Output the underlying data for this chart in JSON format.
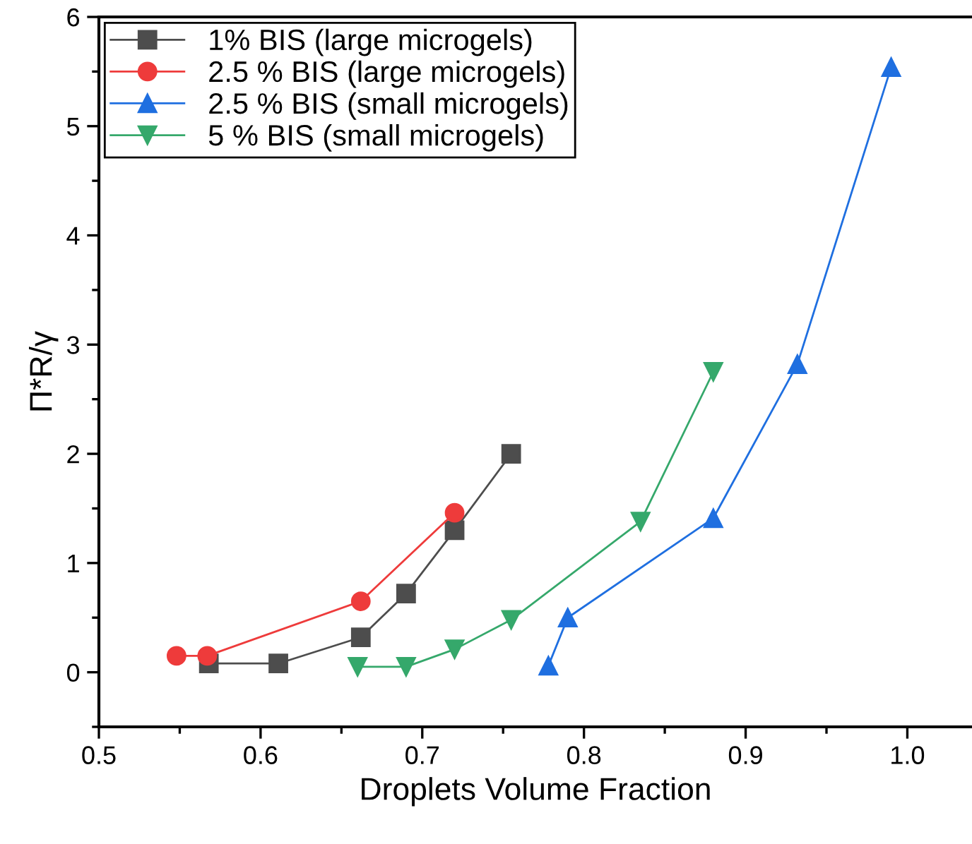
{
  "chart_data": {
    "type": "line",
    "xlabel": "Droplets Volume Fraction",
    "ylabel": "Π*R/γ",
    "xlim": [
      0.5,
      1.04
    ],
    "xticks": [
      0.5,
      0.6,
      0.7,
      0.8,
      0.9,
      {
        "value": 1.0,
        "label": "1.0"
      }
    ],
    "ylim": [
      -0.5,
      6
    ],
    "yticks": [
      0,
      1,
      2,
      3,
      4,
      5,
      6
    ],
    "grid": false,
    "legend": "top left",
    "line_style": "solid",
    "series": [
      {
        "name": "1% BIS (large microgels)",
        "color": "#4d4d4d",
        "marker": "square",
        "x": [
          0.568,
          0.611,
          0.662,
          0.69,
          0.72,
          0.755
        ],
        "values": [
          0.08,
          0.08,
          0.32,
          0.72,
          1.3,
          2.0
        ]
      },
      {
        "name": "2.5 % BIS (large microgels)",
        "color": "#ee3b3b",
        "marker": "circle",
        "x": [
          0.548,
          0.567,
          0.662,
          0.72
        ],
        "values": [
          0.15,
          0.15,
          0.65,
          1.46
        ]
      },
      {
        "name": "2.5 % BIS (small microgels)",
        "color": "#1f6fe0",
        "marker": "triangle",
        "x": [
          0.778,
          0.79,
          0.88,
          0.932,
          0.99
        ],
        "values": [
          0.06,
          0.5,
          1.41,
          2.82,
          5.54
        ]
      },
      {
        "name": "5 % BIS (small microgels)",
        "color": "#35a86b",
        "marker": "triangle_down",
        "x": [
          0.66,
          0.69,
          0.72,
          0.755,
          0.835,
          0.88
        ],
        "values": [
          0.05,
          0.05,
          0.21,
          0.48,
          1.38,
          2.75
        ]
      }
    ]
  }
}
